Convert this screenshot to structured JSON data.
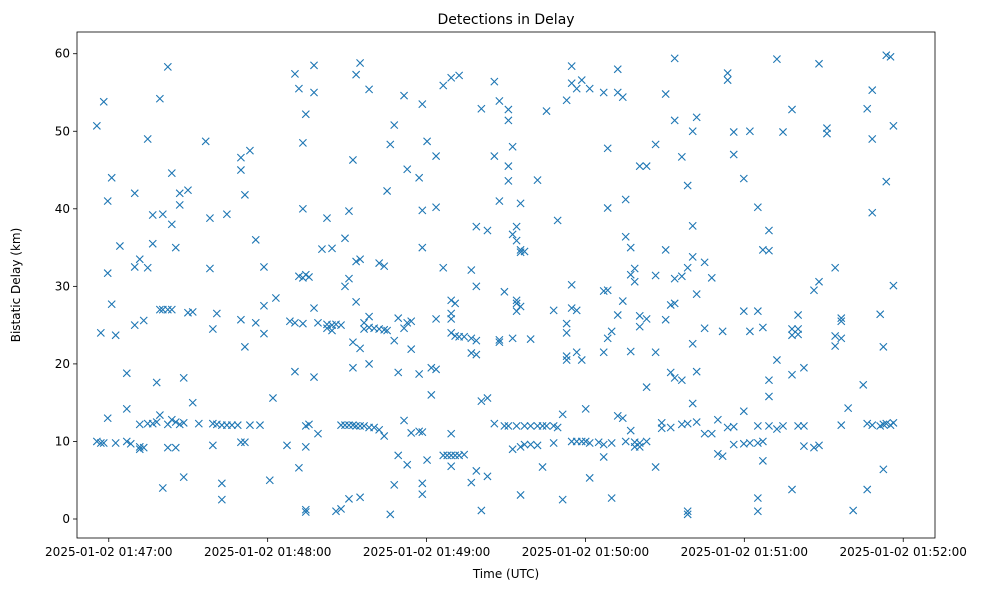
{
  "chart_data": {
    "type": "scatter",
    "title": "Detections in Delay",
    "xlabel": "Time (UTC)",
    "ylabel": "Bistatic Delay (km)",
    "x_units": "seconds after 2025-01-02 01:47:00",
    "xlim": [
      -12,
      312
    ],
    "ylim": [
      -2.45,
      62.8
    ],
    "grid": false,
    "marker": "x",
    "color": "#1f77b4",
    "x_ticks": [
      {
        "value": 0,
        "label": "2025-01-02 01:47:00"
      },
      {
        "value": 60,
        "label": "2025-01-02 01:48:00"
      },
      {
        "value": 120,
        "label": "2025-01-02 01:49:00"
      },
      {
        "value": 180,
        "label": "2025-01-02 01:50:00"
      },
      {
        "value": 240,
        "label": "2025-01-02 01:51:00"
      },
      {
        "value": 300,
        "label": "2025-01-02 01:52:00"
      }
    ],
    "y_ticks": [
      {
        "value": 0,
        "label": "0"
      },
      {
        "value": 10,
        "label": "10"
      },
      {
        "value": 20,
        "label": "20"
      },
      {
        "value": 30,
        "label": "30"
      },
      {
        "value": 40,
        "label": "40"
      },
      {
        "value": 50,
        "label": "50"
      },
      {
        "value": 60,
        "label": "60"
      }
    ],
    "points_grouped_by_time": [
      [
        -4.5,
        [
          50.7,
          10
        ]
      ],
      [
        -3,
        [
          24,
          9.8
        ]
      ],
      [
        -1.9,
        [
          53.8,
          9.8
        ]
      ],
      [
        -0.4,
        [
          41,
          31.7,
          13
        ]
      ],
      [
        1.1,
        [
          44,
          27.7
        ]
      ],
      [
        2.6,
        [
          23.7,
          9.8
        ]
      ],
      [
        4.2,
        [
          35.2
        ]
      ],
      [
        6.8,
        [
          18.8,
          14.2,
          10
        ]
      ],
      [
        8.3,
        [
          9.7
        ]
      ],
      [
        9.8,
        [
          32.5,
          42,
          25
        ]
      ],
      [
        11.7,
        [
          12.2,
          9.3,
          33.5,
          9
        ]
      ],
      [
        13.2,
        [
          25.6,
          9.2
        ]
      ],
      [
        14.7,
        [
          49,
          32.4,
          12.3
        ]
      ],
      [
        16.6,
        [
          35.5,
          39.2,
          12.3
        ]
      ],
      [
        18.1,
        [
          17.6,
          12.5
        ]
      ],
      [
        19.3,
        [
          54.2,
          27,
          13.4
        ]
      ],
      [
        20.4,
        [
          4,
          39.3,
          27
        ]
      ],
      [
        22.3,
        [
          58.3,
          27,
          9.2,
          12.2
        ]
      ],
      [
        23.8,
        [
          44.6,
          38,
          27,
          12.8
        ]
      ],
      [
        25.3,
        [
          35,
          12.5,
          9.2
        ]
      ],
      [
        26.8,
        [
          40.5,
          42,
          12.2
        ]
      ],
      [
        28.3,
        [
          18.2,
          5.4,
          12.4
        ]
      ],
      [
        29.9,
        [
          42.4,
          26.6
        ]
      ],
      [
        31.7,
        [
          15,
          26.7
        ]
      ],
      [
        34,
        [
          12.3
        ]
      ],
      [
        36.6,
        [
          48.7
        ]
      ],
      [
        38.2,
        [
          32.3,
          38.8
        ]
      ],
      [
        39.3,
        [
          9.5,
          24.5,
          12.3
        ]
      ],
      [
        40.8,
        [
          26.5,
          12.2
        ]
      ],
      [
        42.7,
        [
          4.6,
          2.5,
          12.1
        ]
      ],
      [
        44.6,
        [
          39.3,
          12.1
        ]
      ],
      [
        46.5,
        [
          12.1
        ]
      ],
      [
        48.7,
        [
          12.1
        ]
      ],
      [
        49.9,
        [
          46.6,
          45,
          25.7,
          9.9
        ]
      ],
      [
        51.4,
        [
          41.8,
          22.2,
          9.9
        ]
      ],
      [
        53.3,
        [
          47.5,
          12.1
        ]
      ],
      [
        55.5,
        [
          36,
          25.3
        ]
      ],
      [
        57.1,
        [
          12.1
        ]
      ],
      [
        58.6,
        [
          32.5,
          27.5,
          23.9
        ]
      ],
      [
        60.8,
        [
          5
        ]
      ],
      [
        62,
        [
          15.6
        ]
      ],
      [
        63.1,
        [
          28.5
        ]
      ],
      [
        67.3,
        [
          9.5
        ]
      ],
      [
        68.4,
        [
          25.5
        ]
      ],
      [
        70.3,
        [
          57.4,
          25.3,
          19
        ]
      ],
      [
        71.8,
        [
          55.5,
          31.3,
          6.6
        ]
      ],
      [
        73.3,
        [
          48.5,
          40,
          31.1,
          25.2
        ]
      ],
      [
        74.4,
        [
          52.2,
          31.5,
          12,
          9.3,
          1.2,
          0.9
        ]
      ],
      [
        75.6,
        [
          31.2,
          12.2
        ]
      ],
      [
        77.5,
        [
          58.5,
          55,
          27.2,
          18.3
        ]
      ],
      [
        79,
        [
          25.3,
          11
        ]
      ],
      [
        80.5,
        [
          34.8
        ]
      ],
      [
        82.4,
        [
          38.8,
          25.1,
          24.6
        ]
      ],
      [
        84.3,
        [
          34.9,
          25,
          24.3
        ]
      ],
      [
        85.8,
        [
          25.1,
          1
        ]
      ],
      [
        87.7,
        [
          25,
          12.1,
          1.3
        ]
      ],
      [
        89.2,
        [
          36.2,
          30,
          12.1
        ]
      ],
      [
        90.7,
        [
          39.7,
          31,
          12.1,
          2.6
        ]
      ],
      [
        92.2,
        [
          46.3,
          22.8,
          19.5,
          12.1
        ]
      ],
      [
        93.4,
        [
          57.3,
          33.2,
          28,
          12
        ]
      ],
      [
        94.9,
        [
          58.8,
          33.5,
          22,
          12,
          2.8
        ]
      ],
      [
        96.4,
        [
          25.3,
          24.5,
          12
        ]
      ],
      [
        98.3,
        [
          55.4,
          26.1,
          24.7,
          20,
          11.8
        ]
      ],
      [
        100.2,
        [
          24.6,
          11.8
        ]
      ],
      [
        102.1,
        [
          33,
          24.5,
          11.5
        ]
      ],
      [
        104,
        [
          32.6,
          24.4,
          10.7
        ]
      ],
      [
        105.1,
        [
          42.3,
          24.3
        ]
      ],
      [
        106.3,
        [
          48.3,
          0.6
        ]
      ],
      [
        107.8,
        [
          50.8,
          23,
          4.4
        ]
      ],
      [
        109.3,
        [
          25.9,
          18.9,
          8.2
        ]
      ],
      [
        111.5,
        [
          54.6,
          24.6,
          12.7
        ]
      ],
      [
        112.7,
        [
          45.1,
          25.3,
          7
        ]
      ],
      [
        114.2,
        [
          25.5,
          21.9,
          11.1
        ]
      ],
      [
        117.2,
        [
          44,
          18.7,
          11.3
        ]
      ],
      [
        118.4,
        [
          53.5,
          39.8,
          35,
          11.2,
          4.6,
          3.2
        ]
      ],
      [
        120.2,
        [
          48.7,
          7.6
        ]
      ],
      [
        121.8,
        [
          19.5,
          16
        ]
      ],
      [
        123.6,
        [
          46.8,
          40.2,
          25.8,
          19.3
        ]
      ],
      [
        126.3,
        [
          55.9,
          32.4,
          8.2
        ]
      ],
      [
        127.8,
        [
          8.2
        ]
      ],
      [
        129.3,
        [
          56.9,
          28.2,
          26.5,
          25.8,
          24,
          11,
          6.8,
          8.2
        ]
      ],
      [
        130.8,
        [
          23.6,
          27.8,
          8.2
        ]
      ],
      [
        132.3,
        [
          57.2,
          23.5,
          8.2
        ]
      ],
      [
        134.2,
        [
          23.5,
          8.3
        ]
      ],
      [
        136.9,
        [
          32.1,
          21.4,
          23.3,
          4.7
        ]
      ],
      [
        138.8,
        [
          37.7,
          30,
          21.2,
          23,
          6.2
        ]
      ],
      [
        140.7,
        [
          52.9,
          15.2,
          1.1
        ]
      ],
      [
        143,
        [
          37.2,
          15.6,
          5.5
        ]
      ],
      [
        145.6,
        [
          56.4,
          46.8,
          12.3
        ]
      ],
      [
        147.5,
        [
          53.9,
          41,
          23.1,
          22.8
        ]
      ],
      [
        149.4,
        [
          29.3,
          12
        ]
      ],
      [
        150.9,
        [
          52.8,
          51.4,
          43.6,
          45.5,
          12
        ]
      ],
      [
        152.5,
        [
          48,
          36.7,
          23.3,
          9
        ]
      ],
      [
        154,
        [
          35.9,
          37.7,
          28.2,
          27.8,
          26.8,
          12
        ]
      ],
      [
        155.5,
        [
          40.7,
          34.7,
          34.4,
          27.4,
          9.3,
          3.1
        ]
      ],
      [
        157,
        [
          34.5,
          9.6,
          12
        ]
      ],
      [
        159.3,
        [
          23.2,
          9.6,
          12
        ]
      ],
      [
        161.9,
        [
          43.7,
          9.5,
          12
        ]
      ],
      [
        163.8,
        [
          6.7,
          12
        ]
      ],
      [
        165.3,
        [
          52.6,
          12
        ]
      ],
      [
        168,
        [
          26.9,
          12,
          9.8
        ]
      ],
      [
        169.5,
        [
          38.5,
          11.8
        ]
      ],
      [
        171.4,
        [
          2.5,
          13.5
        ]
      ],
      [
        172.9,
        [
          54,
          21,
          20.5,
          25.2,
          24
        ]
      ],
      [
        174.8,
        [
          58.4,
          56.2,
          30.2,
          27.2,
          10
        ]
      ],
      [
        176.7,
        [
          55.5,
          26.9,
          21.5,
          10
        ]
      ],
      [
        178.6,
        [
          56.6,
          20.5,
          10
        ]
      ],
      [
        180.1,
        [
          14.2,
          10
        ]
      ],
      [
        181.6,
        [
          55.5,
          5.3,
          9.8
        ]
      ],
      [
        185,
        [
          9.9
        ]
      ],
      [
        186.9,
        [
          55,
          29.4,
          21.5,
          9.6,
          8
        ]
      ],
      [
        188.4,
        [
          47.8,
          40.1,
          23.3,
          29.5
        ]
      ],
      [
        189.9,
        [
          2.7,
          24.2,
          9.8
        ]
      ],
      [
        192.2,
        [
          58,
          55,
          26.3,
          13.3
        ]
      ],
      [
        194.1,
        [
          54.4,
          28.1,
          13
        ]
      ],
      [
        195.2,
        [
          41.2,
          36.4,
          10
        ]
      ],
      [
        197.1,
        [
          35,
          31.5,
          21.6,
          11.4
        ]
      ],
      [
        198.6,
        [
          32.3,
          30.6,
          9.9,
          9.3
        ]
      ],
      [
        200.5,
        [
          45.5,
          26.2,
          24.8,
          9.8,
          9.3
        ]
      ],
      [
        203.1,
        [
          45.5,
          25.8,
          17,
          10
        ]
      ],
      [
        206.5,
        [
          48.3,
          31.4,
          21.5,
          6.7
        ]
      ],
      [
        208.8,
        [
          12.4,
          11.7
        ]
      ],
      [
        210.3,
        [
          54.8,
          34.7,
          25.7
        ]
      ],
      [
        212.2,
        [
          27.6,
          18.9,
          11.8
        ]
      ],
      [
        213.7,
        [
          59.4,
          51.4,
          31,
          27.8,
          18.2
        ]
      ],
      [
        216.4,
        [
          46.7,
          17.9,
          31.3,
          12.2
        ]
      ],
      [
        218.6,
        [
          43,
          32.4,
          12.3,
          1,
          0.6
        ]
      ],
      [
        220.5,
        [
          50,
          37.8,
          33.8,
          22.6,
          14.9
        ]
      ],
      [
        222,
        [
          51.8,
          29,
          19,
          12.5
        ]
      ],
      [
        225,
        [
          33.1,
          24.6,
          11
        ]
      ],
      [
        227.7,
        [
          31.1,
          11
        ]
      ],
      [
        230,
        [
          12.8,
          8.4
        ]
      ],
      [
        231.8,
        [
          24.2,
          8.1
        ]
      ],
      [
        233.7,
        [
          56.6,
          57.5,
          11.8
        ]
      ],
      [
        236,
        [
          49.9,
          47,
          11.9,
          9.6
        ]
      ],
      [
        239.8,
        [
          43.9,
          26.8,
          13.9,
          9.7
        ]
      ],
      [
        242.1,
        [
          50,
          24.2,
          9.8
        ]
      ],
      [
        245.1,
        [
          40.2,
          26.8,
          12,
          9.8,
          2.7,
          1
        ]
      ],
      [
        247,
        [
          34.7,
          24.7,
          7.5,
          10
        ]
      ],
      [
        249.3,
        [
          37.2,
          34.6,
          17.9,
          15.8,
          12
        ]
      ],
      [
        252.3,
        [
          59.3,
          20.5,
          11.6
        ]
      ],
      [
        254.6,
        [
          49.9,
          12
        ]
      ],
      [
        258,
        [
          52.8,
          24.5,
          23.7,
          18.6,
          3.8
        ]
      ],
      [
        260.3,
        [
          23.8,
          24.5,
          26.3,
          12
        ]
      ],
      [
        262.5,
        [
          19.5,
          9.4,
          12
        ]
      ],
      [
        266.3,
        [
          29.5,
          9.2
        ]
      ],
      [
        268.2,
        [
          58.7,
          30.6,
          9.5
        ]
      ],
      [
        271.2,
        [
          49.7,
          50.4
        ]
      ],
      [
        274.3,
        [
          32.4,
          22.3,
          23.6
        ]
      ],
      [
        276.6,
        [
          25.9,
          23.3,
          25.5,
          12.1
        ]
      ],
      [
        279.2,
        [
          14.3
        ]
      ],
      [
        281.1,
        [
          1.1
        ]
      ],
      [
        284.9,
        [
          17.3
        ]
      ],
      [
        286.4,
        [
          52.9,
          3.8,
          12.3
        ]
      ],
      [
        288.3,
        [
          55.3,
          49,
          39.5,
          12.1
        ]
      ],
      [
        291.3,
        [
          26.4,
          12
        ]
      ],
      [
        292.5,
        [
          6.4,
          22.2,
          12.2
        ]
      ],
      [
        293.6,
        [
          59.8,
          43.5,
          12.3
        ]
      ],
      [
        295.2,
        [
          59.6,
          12.1
        ]
      ],
      [
        296.3,
        [
          50.7,
          30.1,
          12.4
        ]
      ]
    ]
  }
}
